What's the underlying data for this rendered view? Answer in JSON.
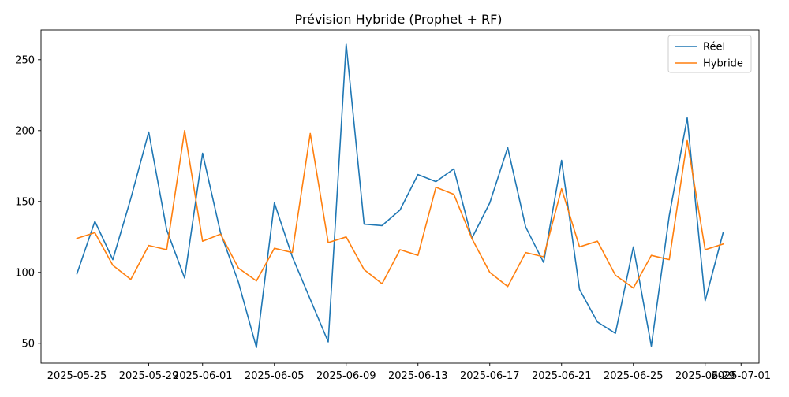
{
  "chart_data": {
    "type": "line",
    "title": "Prévision Hybride (Prophet + RF)",
    "xlabel": "",
    "ylabel": "",
    "x_axis": {
      "type": "date",
      "range": [
        "2025-05-23",
        "2025-07-02"
      ],
      "ticks": [
        "2025-05-25",
        "2025-05-29",
        "2025-06-01",
        "2025-06-05",
        "2025-06-09",
        "2025-06-13",
        "2025-06-17",
        "2025-06-21",
        "2025-06-25",
        "2025-06-29",
        "2025-07-01"
      ]
    },
    "y_axis": {
      "range": [
        36,
        271
      ],
      "ticks": [
        50,
        100,
        150,
        200,
        250
      ]
    },
    "grid": false,
    "legend": {
      "position": "top-right"
    },
    "x": [
      "2025-05-25",
      "2025-05-26",
      "2025-05-27",
      "2025-05-28",
      "2025-05-29",
      "2025-05-30",
      "2025-05-31",
      "2025-06-01",
      "2025-06-02",
      "2025-06-03",
      "2025-06-04",
      "2025-06-05",
      "2025-06-06",
      "2025-06-07",
      "2025-06-08",
      "2025-06-09",
      "2025-06-10",
      "2025-06-11",
      "2025-06-12",
      "2025-06-13",
      "2025-06-14",
      "2025-06-15",
      "2025-06-16",
      "2025-06-17",
      "2025-06-18",
      "2025-06-19",
      "2025-06-20",
      "2025-06-21",
      "2025-06-22",
      "2025-06-23",
      "2025-06-24",
      "2025-06-25",
      "2025-06-26",
      "2025-06-27",
      "2025-06-28",
      "2025-06-29",
      "2025-06-30"
    ],
    "series": [
      {
        "name": "Réel",
        "color": "#1f77b4",
        "values": [
          99,
          136,
          109,
          152,
          199,
          130,
          96,
          184,
          128,
          93,
          47,
          149,
          111,
          81,
          51,
          261,
          134,
          133,
          144,
          169,
          164,
          173,
          124,
          149,
          188,
          132,
          107,
          179,
          88,
          65,
          57,
          118,
          48,
          140,
          209,
          80,
          128
        ]
      },
      {
        "name": "Hybride",
        "color": "#ff7f0e",
        "values": [
          124,
          128,
          105,
          95,
          119,
          116,
          200,
          122,
          127,
          103,
          94,
          117,
          114,
          198,
          121,
          125,
          102,
          92,
          116,
          112,
          160,
          155,
          124,
          100,
          90,
          114,
          111,
          159,
          118,
          122,
          98,
          89,
          112,
          109,
          193,
          116,
          120
        ]
      }
    ]
  }
}
